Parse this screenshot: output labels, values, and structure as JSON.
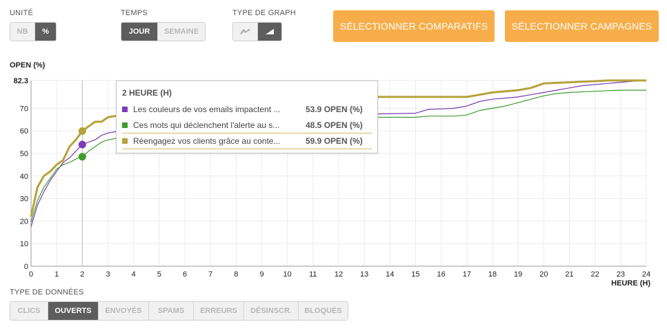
{
  "controls": {
    "unit": {
      "label": "UNITÉ",
      "options": [
        "NB",
        "%"
      ],
      "active": "%"
    },
    "time": {
      "label": "TEMPS",
      "options": [
        "JOUR",
        "SEMAINE"
      ],
      "active": "JOUR"
    },
    "graph_type": {
      "label": "TYPE DE GRAPH",
      "options": [
        "line-chart-icon",
        "area-chart-icon"
      ],
      "active": "area-chart-icon"
    },
    "compare_button": "SÉLECTIONNER COMPARATIFS",
    "campaigns_button": "SÉLECTIONNER CAMPAGNES"
  },
  "data_type": {
    "label": "TYPE DE DONNÉES",
    "options": [
      "CLICS",
      "OUVERTS",
      "ENVOYÉS",
      "SPAMS",
      "ERREURS",
      "DÉSINSCR.",
      "BLOQUÉS"
    ],
    "active": "OUVERTS"
  },
  "tooltip": {
    "title": "2 HEURE (H)",
    "rows": [
      {
        "name": "Les couleurs de vos emails impactent ...",
        "value": "53.9 OPEN (%)",
        "color": "#7a3db5"
      },
      {
        "name": "Ces mots qui déclenchent l'alerte au s...",
        "value": "48.5 OPEN (%)",
        "color": "#3e9c2e"
      },
      {
        "name": "Réengagez vos clients grâce au conte...",
        "value": "59.9 OPEN (%)",
        "color": "#b5a23a"
      }
    ]
  },
  "chart_data": {
    "type": "line",
    "ylabel": "OPEN (%)",
    "xlabel": "HEURE (H)",
    "ymax_label": "82.3",
    "xlim": [
      0,
      24
    ],
    "ylim": [
      0,
      82.3
    ],
    "yticks": [
      0,
      10,
      20,
      30,
      40,
      50,
      60,
      70
    ],
    "xticks": [
      0,
      1,
      2,
      3,
      4,
      5,
      6,
      7,
      8,
      9,
      10,
      11,
      12,
      13,
      14,
      15,
      16,
      17,
      18,
      19,
      20,
      21,
      22,
      23,
      24
    ],
    "hover_x": 2,
    "series": [
      {
        "name": "Les couleurs de vos emails impactent ...",
        "color": "#7a3db5",
        "width": 1.2,
        "points": [
          [
            0,
            17.5
          ],
          [
            0.25,
            27
          ],
          [
            0.5,
            33
          ],
          [
            0.75,
            38
          ],
          [
            1,
            42
          ],
          [
            1.25,
            46
          ],
          [
            1.5,
            48
          ],
          [
            1.75,
            51
          ],
          [
            2,
            53.9
          ],
          [
            2.25,
            55
          ],
          [
            2.5,
            56
          ],
          [
            2.75,
            58
          ],
          [
            3,
            59
          ],
          [
            3.5,
            60
          ],
          [
            13,
            67
          ],
          [
            13.5,
            67.5
          ],
          [
            15,
            67.8
          ],
          [
            15.5,
            69.5
          ],
          [
            16,
            69.7
          ],
          [
            16.5,
            70
          ],
          [
            17,
            71
          ],
          [
            17.5,
            73
          ],
          [
            18,
            74
          ],
          [
            18.5,
            74.5
          ],
          [
            19,
            75
          ],
          [
            19.5,
            76
          ],
          [
            20,
            77
          ],
          [
            20.5,
            78
          ],
          [
            21,
            79
          ],
          [
            21.5,
            80
          ],
          [
            22,
            80.5
          ],
          [
            22.5,
            81
          ],
          [
            23,
            81.5
          ],
          [
            23.5,
            82
          ],
          [
            24,
            82.3
          ]
        ]
      },
      {
        "name": "Ces mots qui déclenchent l'alerte au s...",
        "color": "#3e9c2e",
        "width": 1.2,
        "points": [
          [
            0,
            19.5
          ],
          [
            0.25,
            29
          ],
          [
            0.5,
            35
          ],
          [
            0.75,
            39
          ],
          [
            1,
            43
          ],
          [
            1.25,
            45
          ],
          [
            1.5,
            46
          ],
          [
            1.75,
            47.5
          ],
          [
            2,
            48.5
          ],
          [
            2.25,
            51
          ],
          [
            2.5,
            53
          ],
          [
            2.75,
            55
          ],
          [
            3,
            56
          ],
          [
            3.5,
            57
          ],
          [
            13,
            66
          ],
          [
            15,
            66
          ],
          [
            15.5,
            66.5
          ],
          [
            16.5,
            66.5
          ],
          [
            17,
            67
          ],
          [
            17.5,
            69
          ],
          [
            18,
            70
          ],
          [
            18.5,
            71
          ],
          [
            19,
            72.5
          ],
          [
            19.5,
            74
          ],
          [
            20,
            75.5
          ],
          [
            20.5,
            76.5
          ],
          [
            21,
            77
          ],
          [
            22,
            77.5
          ],
          [
            22.5,
            77.8
          ],
          [
            23,
            78
          ],
          [
            24,
            78
          ]
        ]
      },
      {
        "name": "Réengagez vos clients grâce au conte...",
        "color": "#b5a23a",
        "width": 3,
        "points": [
          [
            0,
            22
          ],
          [
            0.25,
            35
          ],
          [
            0.5,
            40
          ],
          [
            0.75,
            42
          ],
          [
            1,
            45
          ],
          [
            1.25,
            47
          ],
          [
            1.5,
            53
          ],
          [
            1.75,
            56
          ],
          [
            2,
            59.9
          ],
          [
            2.25,
            62
          ],
          [
            2.5,
            64
          ],
          [
            2.75,
            64
          ],
          [
            3,
            66
          ],
          [
            3.5,
            67
          ],
          [
            13,
            75
          ],
          [
            17,
            75
          ],
          [
            17.5,
            76
          ],
          [
            18,
            77
          ],
          [
            18.5,
            77.5
          ],
          [
            19,
            78
          ],
          [
            19.5,
            79
          ],
          [
            20,
            81
          ],
          [
            21,
            81.5
          ],
          [
            22,
            82
          ],
          [
            22.5,
            82.3
          ],
          [
            24,
            82.3
          ]
        ]
      }
    ]
  }
}
